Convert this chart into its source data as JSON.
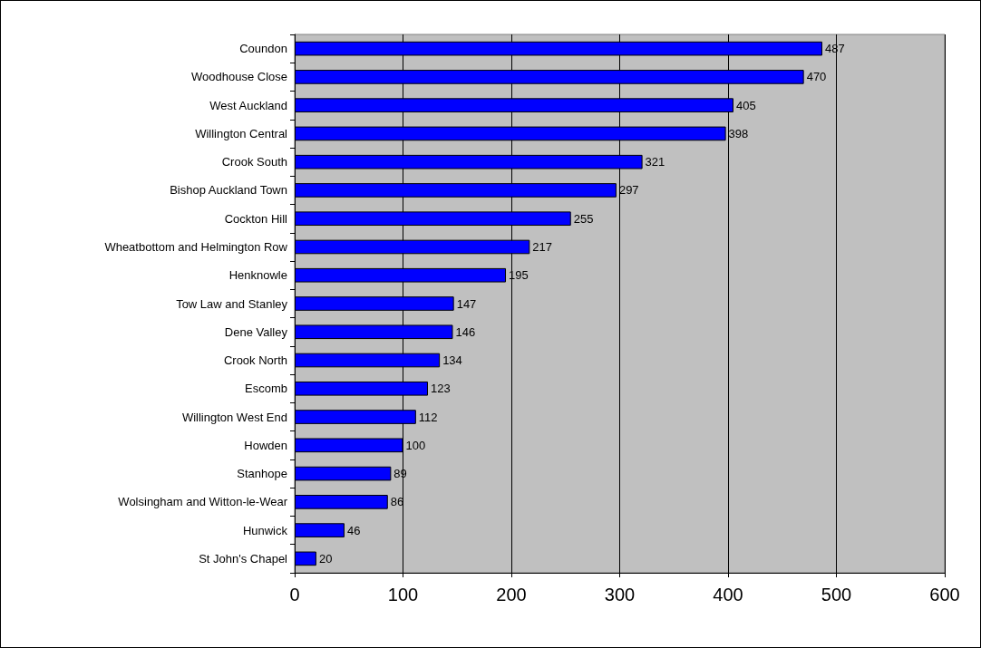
{
  "chart_data": {
    "type": "bar",
    "orientation": "horizontal",
    "categories": [
      "Coundon",
      "Woodhouse Close",
      "West Auckland",
      "Willington Central",
      "Crook South",
      "Bishop Auckland Town",
      "Cockton Hill",
      "Wheatbottom and Helmington Row",
      "Henknowle",
      "Tow Law and Stanley",
      "Dene Valley",
      "Crook North",
      "Escomb",
      "Willington West End",
      "Howden",
      "Stanhope",
      "Wolsingham and Witton-le-Wear",
      "Hunwick",
      "St John's Chapel"
    ],
    "values": [
      487,
      470,
      405,
      398,
      321,
      297,
      255,
      217,
      195,
      147,
      146,
      134,
      123,
      112,
      100,
      89,
      86,
      46,
      20
    ],
    "color": "#0000ff",
    "xlim": [
      0,
      600
    ],
    "xticks": [
      0,
      100,
      200,
      300,
      400,
      500,
      600
    ],
    "grid": "x",
    "data_labels": true
  }
}
